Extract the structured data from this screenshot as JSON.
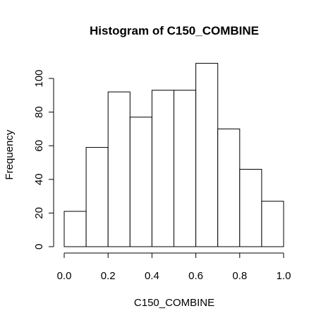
{
  "chart_data": {
    "type": "bar",
    "title": "Histogram of C150_COMBINE",
    "xlabel": "C150_COMBINE",
    "ylabel": "Frequency",
    "bin_edges": [
      0.0,
      0.1,
      0.2,
      0.3,
      0.4,
      0.5,
      0.6,
      0.7,
      0.8,
      0.9,
      1.0
    ],
    "values": [
      21,
      59,
      92,
      77,
      93,
      93,
      109,
      70,
      46,
      27
    ],
    "xlim": [
      0.0,
      1.0
    ],
    "ylim": [
      0,
      100
    ],
    "x_ticks": [
      "0.0",
      "0.2",
      "0.4",
      "0.6",
      "0.8",
      "1.0"
    ],
    "y_ticks": [
      "0",
      "20",
      "40",
      "60",
      "80",
      "100"
    ],
    "grid": false,
    "bar_fill": "#ffffff",
    "bar_stroke": "#000000"
  }
}
